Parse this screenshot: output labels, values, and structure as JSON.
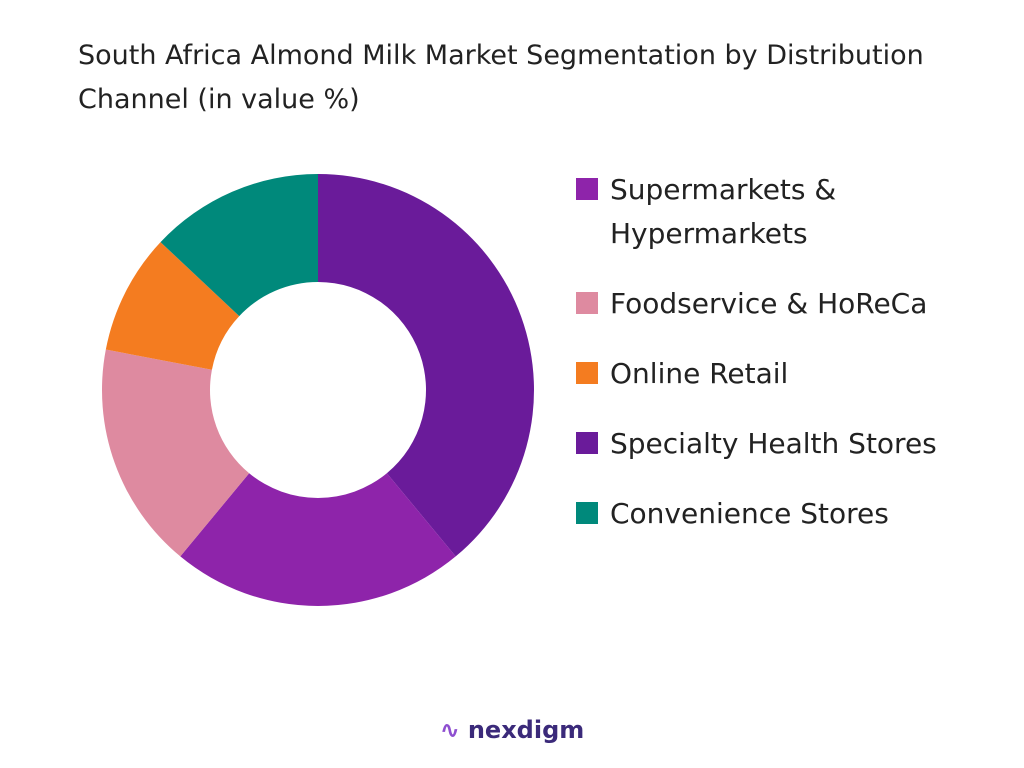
{
  "chart_data": {
    "type": "pie",
    "title": "South Africa Almond Milk Market Segmentation by Distribution Channel (in value %)",
    "categories": [
      "Supermarkets & Hypermarkets",
      "Foodservice & HoReCa",
      "Online Retail",
      "Specialty Health Stores",
      "Convenience Stores"
    ],
    "values": [
      22,
      17,
      9,
      39,
      13
    ],
    "colors": [
      "#8e24aa",
      "#de8aa0",
      "#f47c20",
      "#6a1b9a",
      "#00897b"
    ],
    "hole": true,
    "legend": "right",
    "logo": "nexdigm"
  }
}
